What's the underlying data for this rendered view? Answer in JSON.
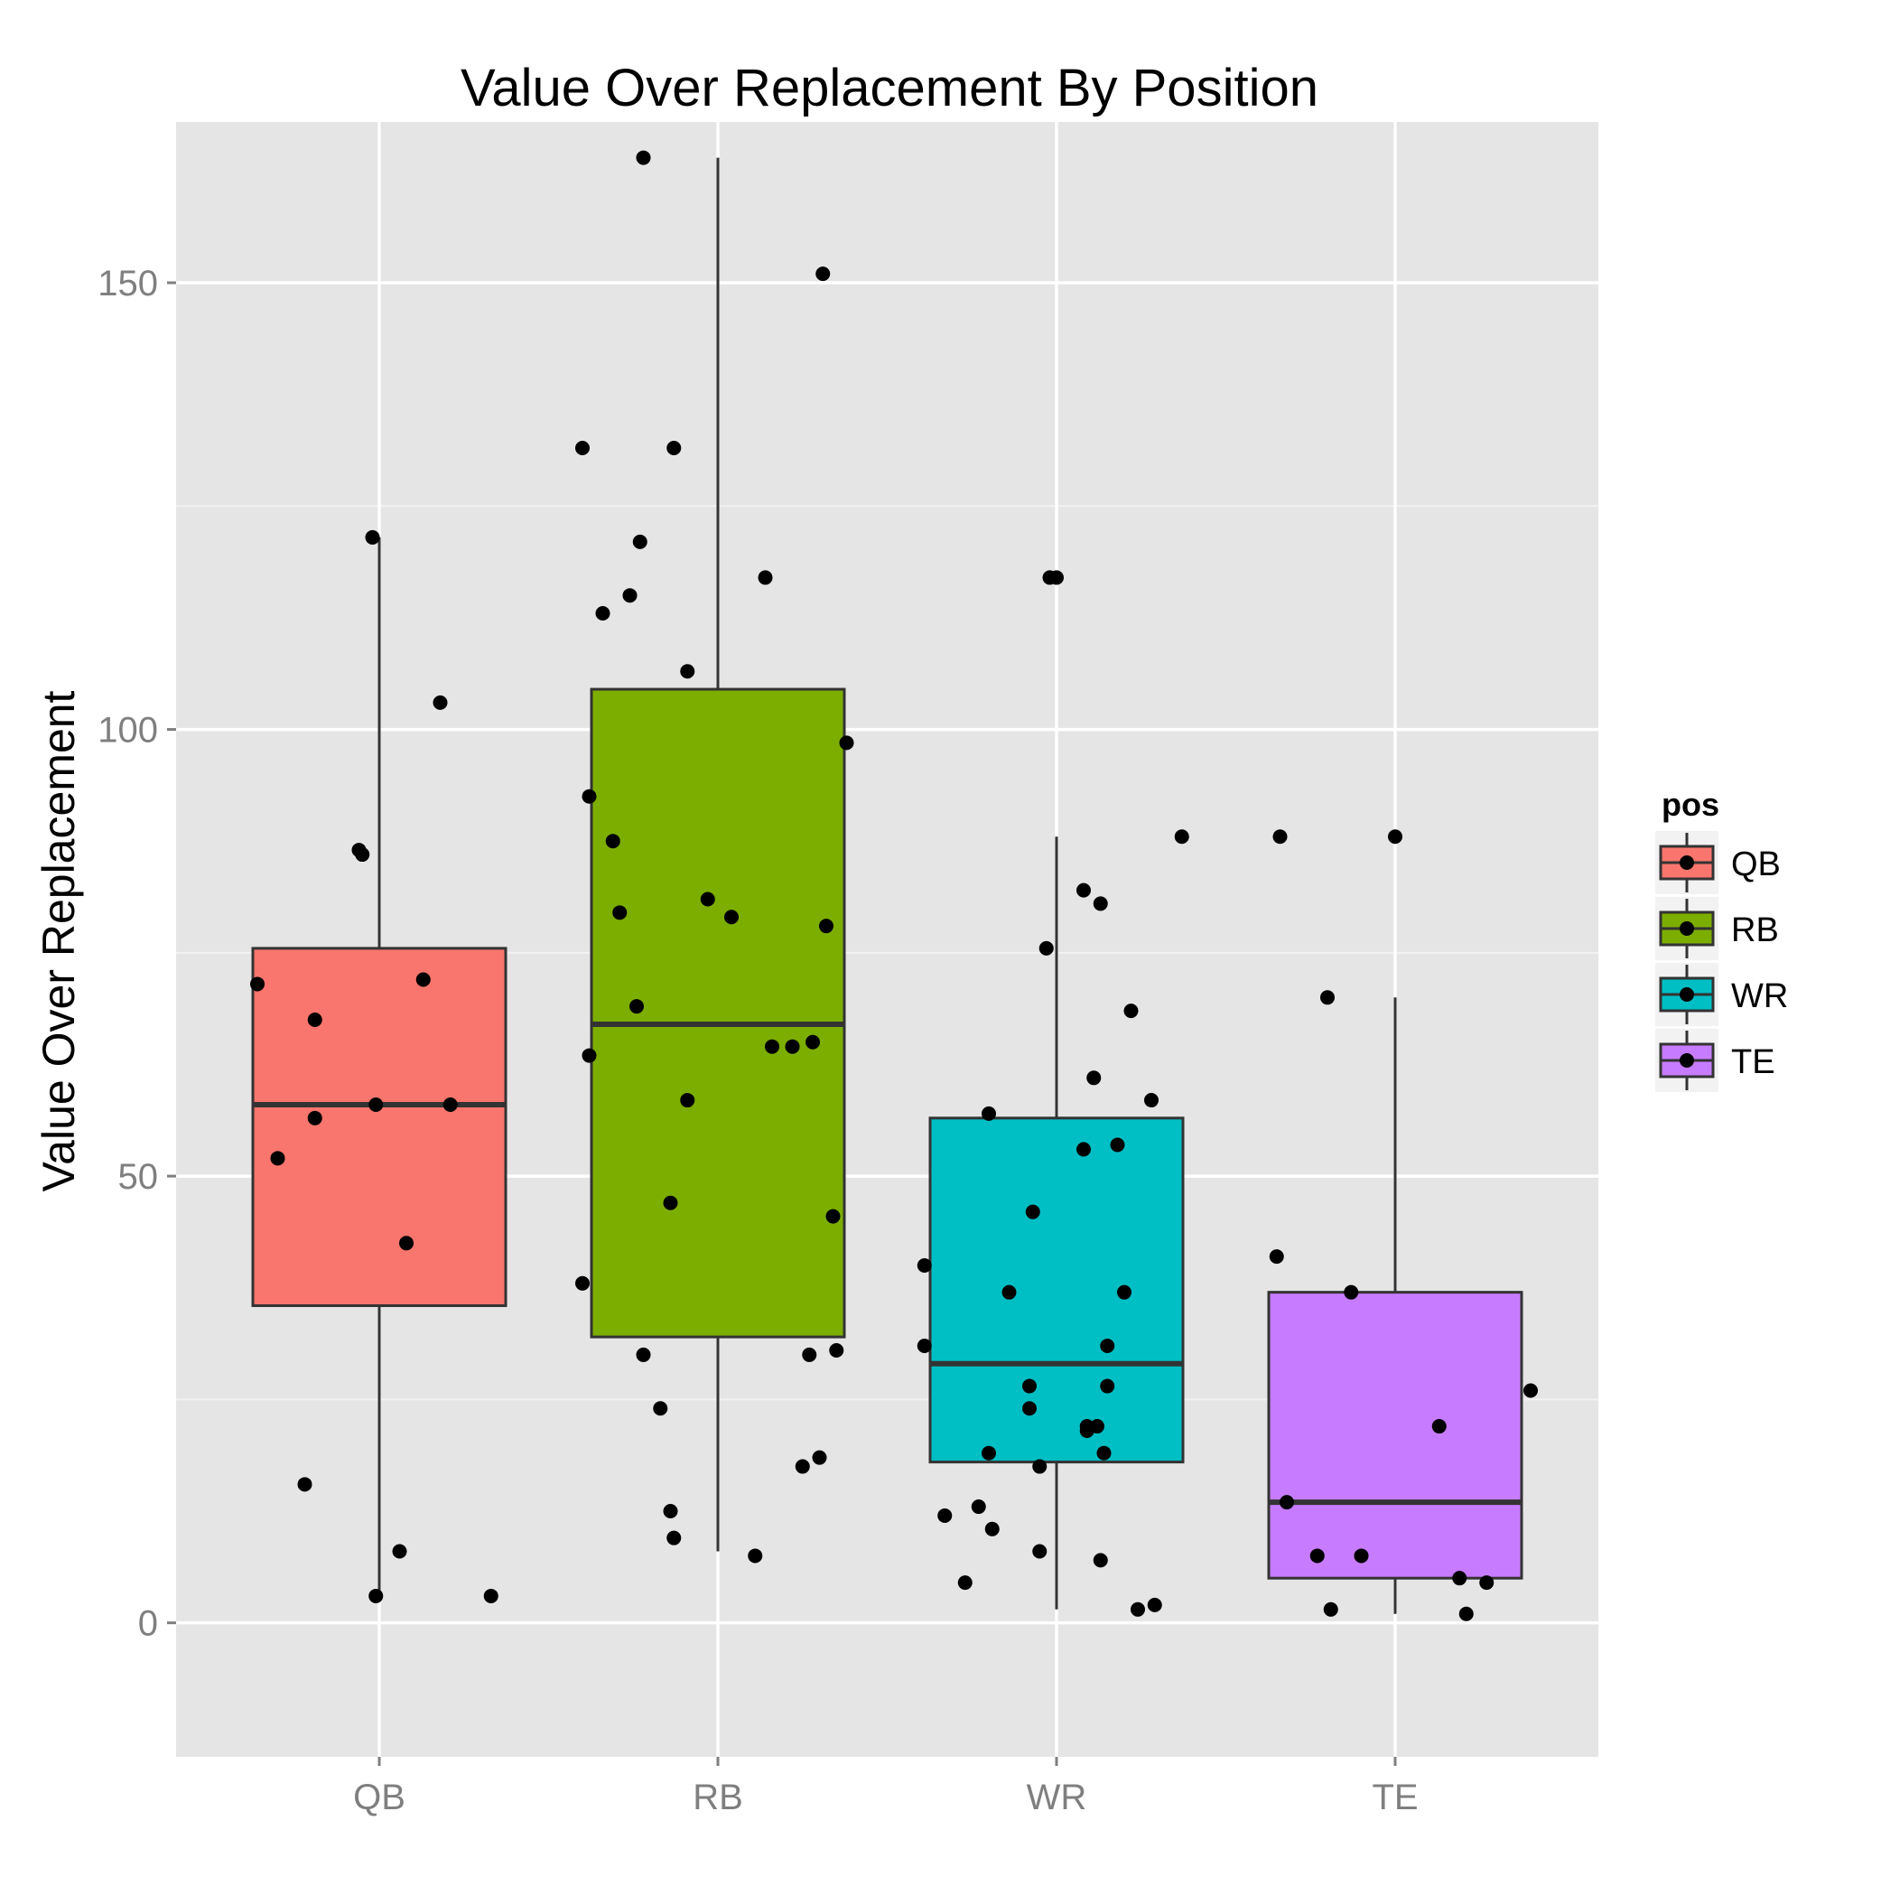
{
  "chart_data": {
    "type": "box",
    "title": "Value Over Replacement By Position",
    "xlabel": "",
    "ylabel": "Value Over Replacement",
    "ylim": [
      -15,
      168
    ],
    "y_ticks": [
      0,
      50,
      100,
      150
    ],
    "y_tick_labels": [
      "0",
      "50",
      "100",
      "150"
    ],
    "categories": [
      "QB",
      "RB",
      "WR",
      "TE"
    ],
    "grid": true,
    "legend": {
      "title": "pos",
      "placement": "right",
      "entries": [
        "QB",
        "RB",
        "WR",
        "TE"
      ]
    },
    "colors": {
      "QB": "#F8766D",
      "RB": "#7CAE00",
      "WR": "#00BFC4",
      "TE": "#C77CFF",
      "panel": "#E5E5E5",
      "grid_major": "#ffffff",
      "grid_minor": "#F2F2F2",
      "outline": "#333333",
      "point": "#000000"
    },
    "boxes": [
      {
        "category": "QB",
        "lower_whisker": 3,
        "q1": 35.5,
        "median": 58,
        "q3": 75.5,
        "upper_whisker": 121.5
      },
      {
        "category": "RB",
        "lower_whisker": 8,
        "q1": 32,
        "median": 67,
        "q3": 104.5,
        "upper_whisker": 164
      },
      {
        "category": "WR",
        "lower_whisker": 1.5,
        "q1": 18,
        "median": 29,
        "q3": 56.5,
        "upper_whisker": 88
      },
      {
        "category": "TE",
        "lower_whisker": 1,
        "q1": 5,
        "median": 13.5,
        "q3": 37,
        "upper_whisker": 70
      }
    ],
    "points": [
      {
        "category": "QB",
        "jitter": -0.36,
        "y": 71.5
      },
      {
        "category": "QB",
        "jitter": -0.3,
        "y": 52
      },
      {
        "category": "QB",
        "jitter": -0.22,
        "y": 15.5
      },
      {
        "category": "QB",
        "jitter": -0.19,
        "y": 67.5
      },
      {
        "category": "QB",
        "jitter": -0.19,
        "y": 56.5
      },
      {
        "category": "QB",
        "jitter": -0.06,
        "y": 86.5
      },
      {
        "category": "QB",
        "jitter": -0.05,
        "y": 86
      },
      {
        "category": "QB",
        "jitter": -0.02,
        "y": 121.5
      },
      {
        "category": "QB",
        "jitter": -0.01,
        "y": 3
      },
      {
        "category": "QB",
        "jitter": -0.01,
        "y": 58
      },
      {
        "category": "QB",
        "jitter": 0.06,
        "y": 8
      },
      {
        "category": "QB",
        "jitter": 0.08,
        "y": 42.5
      },
      {
        "category": "QB",
        "jitter": 0.13,
        "y": 72
      },
      {
        "category": "QB",
        "jitter": 0.18,
        "y": 103
      },
      {
        "category": "QB",
        "jitter": 0.21,
        "y": 58
      },
      {
        "category": "QB",
        "jitter": 0.33,
        "y": 3
      },
      {
        "category": "RB",
        "jitter": -0.4,
        "y": 38
      },
      {
        "category": "RB",
        "jitter": -0.4,
        "y": 131.5
      },
      {
        "category": "RB",
        "jitter": -0.38,
        "y": 63.5
      },
      {
        "category": "RB",
        "jitter": -0.38,
        "y": 92.5
      },
      {
        "category": "RB",
        "jitter": -0.34,
        "y": 113
      },
      {
        "category": "RB",
        "jitter": -0.31,
        "y": 87.5
      },
      {
        "category": "RB",
        "jitter": -0.29,
        "y": 79.5
      },
      {
        "category": "RB",
        "jitter": -0.26,
        "y": 115
      },
      {
        "category": "RB",
        "jitter": -0.24,
        "y": 69
      },
      {
        "category": "RB",
        "jitter": -0.23,
        "y": 121
      },
      {
        "category": "RB",
        "jitter": -0.22,
        "y": 30
      },
      {
        "category": "RB",
        "jitter": -0.22,
        "y": 164
      },
      {
        "category": "RB",
        "jitter": -0.17,
        "y": 24
      },
      {
        "category": "RB",
        "jitter": -0.14,
        "y": 47
      },
      {
        "category": "RB",
        "jitter": -0.14,
        "y": 12.5
      },
      {
        "category": "RB",
        "jitter": -0.13,
        "y": 9.5
      },
      {
        "category": "RB",
        "jitter": -0.13,
        "y": 131.5
      },
      {
        "category": "RB",
        "jitter": -0.09,
        "y": 58.5
      },
      {
        "category": "RB",
        "jitter": -0.09,
        "y": 106.5
      },
      {
        "category": "RB",
        "jitter": -0.03,
        "y": 81
      },
      {
        "category": "RB",
        "jitter": 0.04,
        "y": 79
      },
      {
        "category": "RB",
        "jitter": 0.11,
        "y": 7.5
      },
      {
        "category": "RB",
        "jitter": 0.14,
        "y": 117
      },
      {
        "category": "RB",
        "jitter": 0.16,
        "y": 64.5
      },
      {
        "category": "RB",
        "jitter": 0.22,
        "y": 64.5
      },
      {
        "category": "RB",
        "jitter": 0.25,
        "y": 17.5
      },
      {
        "category": "RB",
        "jitter": 0.27,
        "y": 30
      },
      {
        "category": "RB",
        "jitter": 0.28,
        "y": 65
      },
      {
        "category": "RB",
        "jitter": 0.3,
        "y": 18.5
      },
      {
        "category": "RB",
        "jitter": 0.31,
        "y": 151
      },
      {
        "category": "RB",
        "jitter": 0.32,
        "y": 78
      },
      {
        "category": "RB",
        "jitter": 0.34,
        "y": 45.5
      },
      {
        "category": "RB",
        "jitter": 0.35,
        "y": 30.5
      },
      {
        "category": "RB",
        "jitter": 0.38,
        "y": 98.5
      },
      {
        "category": "WR",
        "jitter": -0.39,
        "y": 40
      },
      {
        "category": "WR",
        "jitter": -0.39,
        "y": 31
      },
      {
        "category": "WR",
        "jitter": -0.33,
        "y": 12
      },
      {
        "category": "WR",
        "jitter": -0.27,
        "y": 4.5
      },
      {
        "category": "WR",
        "jitter": -0.23,
        "y": 13
      },
      {
        "category": "WR",
        "jitter": -0.2,
        "y": 19
      },
      {
        "category": "WR",
        "jitter": -0.2,
        "y": 57
      },
      {
        "category": "WR",
        "jitter": -0.19,
        "y": 10.5
      },
      {
        "category": "WR",
        "jitter": -0.14,
        "y": 37
      },
      {
        "category": "WR",
        "jitter": -0.08,
        "y": 24
      },
      {
        "category": "WR",
        "jitter": -0.08,
        "y": 26.5
      },
      {
        "category": "WR",
        "jitter": -0.07,
        "y": 46
      },
      {
        "category": "WR",
        "jitter": -0.05,
        "y": 8
      },
      {
        "category": "WR",
        "jitter": -0.05,
        "y": 17.5
      },
      {
        "category": "WR",
        "jitter": -0.03,
        "y": 75.5
      },
      {
        "category": "WR",
        "jitter": -0.02,
        "y": 117
      },
      {
        "category": "WR",
        "jitter": 0.0,
        "y": 117
      },
      {
        "category": "WR",
        "jitter": 0.08,
        "y": 82
      },
      {
        "category": "WR",
        "jitter": 0.08,
        "y": 53
      },
      {
        "category": "WR",
        "jitter": 0.09,
        "y": 22
      },
      {
        "category": "WR",
        "jitter": 0.09,
        "y": 21.5
      },
      {
        "category": "WR",
        "jitter": 0.11,
        "y": 61
      },
      {
        "category": "WR",
        "jitter": 0.12,
        "y": 22
      },
      {
        "category": "WR",
        "jitter": 0.13,
        "y": 80.5
      },
      {
        "category": "WR",
        "jitter": 0.13,
        "y": 7
      },
      {
        "category": "WR",
        "jitter": 0.14,
        "y": 19
      },
      {
        "category": "WR",
        "jitter": 0.15,
        "y": 26.5
      },
      {
        "category": "WR",
        "jitter": 0.15,
        "y": 31
      },
      {
        "category": "WR",
        "jitter": 0.18,
        "y": 53.5
      },
      {
        "category": "WR",
        "jitter": 0.2,
        "y": 37
      },
      {
        "category": "WR",
        "jitter": 0.22,
        "y": 68.5
      },
      {
        "category": "WR",
        "jitter": 0.24,
        "y": 1.5
      },
      {
        "category": "WR",
        "jitter": 0.28,
        "y": 58.5
      },
      {
        "category": "WR",
        "jitter": 0.29,
        "y": 2
      },
      {
        "category": "WR",
        "jitter": 0.37,
        "y": 88
      },
      {
        "category": "TE",
        "jitter": -0.35,
        "y": 41
      },
      {
        "category": "TE",
        "jitter": -0.34,
        "y": 88
      },
      {
        "category": "TE",
        "jitter": -0.32,
        "y": 13.5
      },
      {
        "category": "TE",
        "jitter": -0.23,
        "y": 7.5
      },
      {
        "category": "TE",
        "jitter": -0.2,
        "y": 70
      },
      {
        "category": "TE",
        "jitter": -0.19,
        "y": 1.5
      },
      {
        "category": "TE",
        "jitter": -0.13,
        "y": 37
      },
      {
        "category": "TE",
        "jitter": -0.1,
        "y": 7.5
      },
      {
        "category": "TE",
        "jitter": 0.0,
        "y": 88
      },
      {
        "category": "TE",
        "jitter": 0.13,
        "y": 22
      },
      {
        "category": "TE",
        "jitter": 0.19,
        "y": 5
      },
      {
        "category": "TE",
        "jitter": 0.21,
        "y": 1
      },
      {
        "category": "TE",
        "jitter": 0.27,
        "y": 4.5
      },
      {
        "category": "TE",
        "jitter": 0.4,
        "y": 26
      }
    ]
  }
}
